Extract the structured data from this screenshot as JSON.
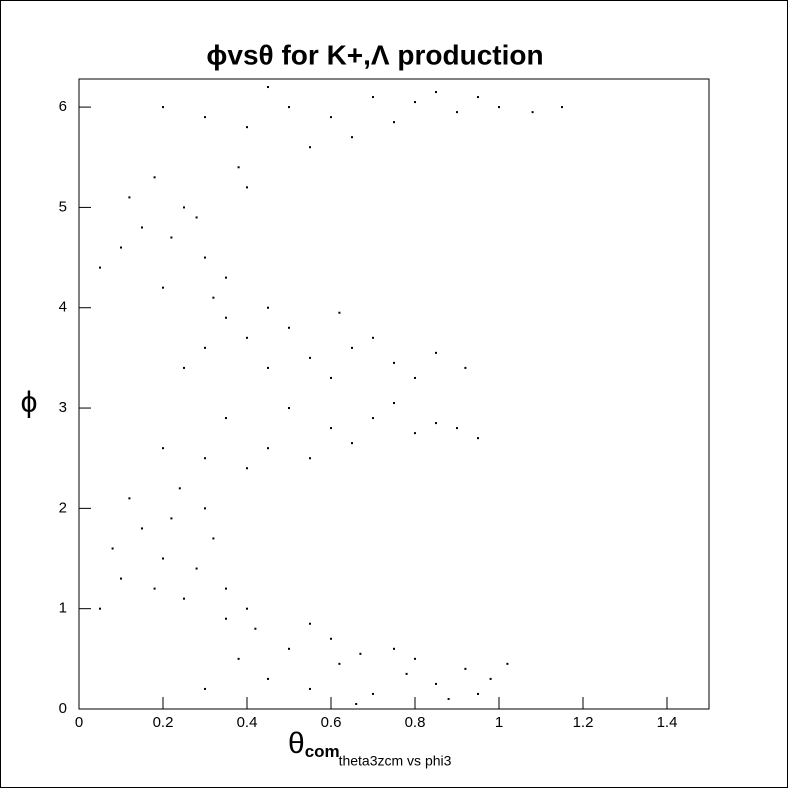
{
  "chart_data": {
    "type": "scatter",
    "title": "ϕvsθ  for K+,Λ production",
    "x_label": {
      "symbol": "θ",
      "subscript": "com"
    },
    "y_label": "ϕ",
    "footer": "theta3zcm vs phi3",
    "color": "#000000",
    "xlim": [
      0,
      1.5
    ],
    "ylim": [
      0,
      6.28
    ],
    "xticks": [
      0,
      0.2,
      0.4,
      0.6,
      0.8,
      1,
      1.2,
      1.4
    ],
    "yticks": [
      0,
      1,
      2,
      3,
      4,
      5,
      6
    ],
    "x": [
      0.45,
      0.55,
      0.62,
      0.7,
      0.78,
      0.85,
      0.92,
      0.98,
      1.02,
      0.5,
      0.6,
      0.38,
      0.3,
      0.67,
      0.88,
      0.75,
      0.42,
      0.55,
      0.35,
      0.66,
      0.95,
      0.8,
      0.1,
      0.2,
      0.15,
      0.25,
      0.3,
      0.08,
      0.22,
      0.35,
      0.12,
      0.28,
      0.05,
      0.18,
      0.4,
      0.32,
      0.24,
      0.3,
      0.45,
      0.6,
      0.7,
      0.8,
      0.85,
      0.5,
      0.65,
      0.4,
      0.75,
      0.9,
      0.55,
      0.35,
      0.2,
      0.95,
      0.45,
      0.55,
      0.65,
      0.75,
      0.85,
      0.92,
      0.6,
      0.4,
      0.5,
      0.7,
      0.3,
      0.35,
      0.8,
      0.25,
      0.62,
      0.2,
      0.3,
      0.15,
      0.25,
      0.35,
      0.1,
      0.4,
      0.28,
      0.05,
      0.18,
      0.32,
      0.22,
      0.45,
      0.12,
      0.38,
      0.4,
      0.5,
      0.6,
      0.7,
      0.8,
      0.9,
      1.0,
      1.08,
      0.55,
      0.45,
      0.65,
      0.85,
      0.3,
      0.75,
      0.95,
      0.2,
      1.15
    ],
    "y": [
      0.3,
      0.2,
      0.45,
      0.15,
      0.35,
      0.25,
      0.4,
      0.3,
      0.45,
      0.6,
      0.7,
      0.5,
      0.2,
      0.55,
      0.1,
      0.6,
      0.8,
      0.85,
      0.9,
      0.05,
      0.15,
      0.5,
      1.3,
      1.5,
      1.8,
      1.1,
      2.0,
      1.6,
      1.9,
      1.2,
      2.1,
      1.4,
      1.0,
      1.2,
      1.0,
      1.7,
      2.2,
      2.5,
      2.6,
      2.8,
      2.9,
      2.75,
      2.85,
      3.0,
      2.65,
      2.4,
      3.05,
      2.8,
      2.5,
      2.9,
      2.6,
      2.7,
      3.4,
      3.5,
      3.6,
      3.45,
      3.55,
      3.4,
      3.3,
      3.7,
      3.8,
      3.7,
      3.6,
      3.9,
      3.3,
      3.4,
      3.95,
      4.2,
      4.5,
      4.8,
      5.0,
      4.3,
      4.6,
      5.2,
      4.9,
      4.4,
      5.3,
      4.1,
      4.7,
      4.0,
      5.1,
      5.4,
      5.8,
      6.0,
      5.9,
      6.1,
      6.05,
      5.95,
      6.0,
      5.95,
      5.6,
      6.2,
      5.7,
      6.15,
      5.9,
      5.85,
      6.1,
      6.0,
      6.0
    ]
  }
}
